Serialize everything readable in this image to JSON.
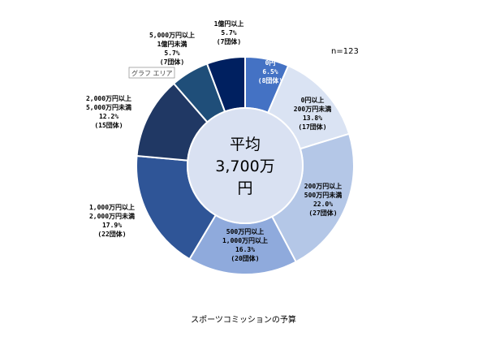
{
  "chart_data": {
    "type": "pie",
    "style": "donut",
    "n_label": "n=123",
    "center_label": [
      "平均",
      "3,700万",
      "円"
    ],
    "caption": "スポーツコミッションの予算",
    "tooltip": "グラフ エリア",
    "slices": [
      {
        "label": [
          "0円"
        ],
        "percent": 6.5,
        "percent_text": "6.5%",
        "count_text": "(8団体)",
        "color": "#4472c4"
      },
      {
        "label": [
          "0円以上",
          "200万円未満"
        ],
        "percent": 13.8,
        "percent_text": "13.8%",
        "count_text": "(17団体)",
        "color": "#dae3f3"
      },
      {
        "label": [
          "200万円以上",
          "500万円未満"
        ],
        "percent": 22.0,
        "percent_text": "22.0%",
        "count_text": "(27団体)",
        "color": "#b4c7e7"
      },
      {
        "label": [
          "500万円以上",
          "1,000万円以上"
        ],
        "percent": 16.3,
        "percent_text": "16.3%",
        "count_text": "(20団体)",
        "color": "#8faadc"
      },
      {
        "label": [
          "1,000万円以上",
          "2,000万円未満"
        ],
        "percent": 17.9,
        "percent_text": "17.9%",
        "count_text": "(22団体)",
        "color": "#2f5597"
      },
      {
        "label": [
          "2,000万円以上",
          "5,000万円未満"
        ],
        "percent": 12.2,
        "percent_text": "12.2%",
        "count_text": "(15団体)",
        "color": "#203864"
      },
      {
        "label": [
          "5,000万円以上",
          "1億円未満"
        ],
        "percent": 5.7,
        "percent_text": "5.7%",
        "count_text": "(7団体)",
        "color": "#1f4e79"
      },
      {
        "label": [
          "1億円以上"
        ],
        "percent": 5.7,
        "percent_text": "5.7%",
        "count_text": "(7団体)",
        "color": "#002060"
      }
    ]
  }
}
